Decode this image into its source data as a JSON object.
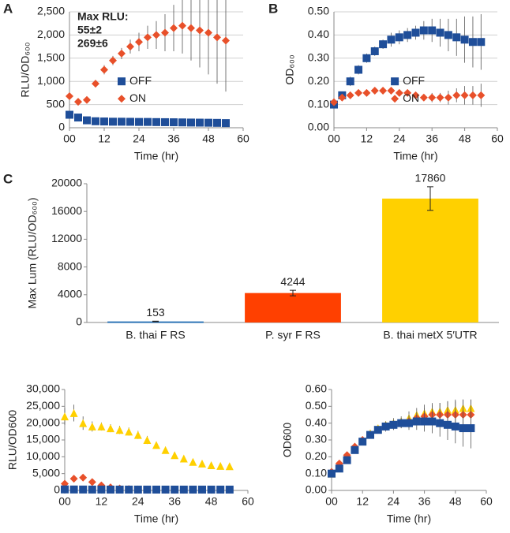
{
  "chart_data": [
    {
      "type": "line",
      "panel": "A",
      "xlabel": "Time (hr)",
      "ylabel": "RLU/OD₆₀₀",
      "x": [
        0,
        3,
        6,
        9,
        12,
        15,
        18,
        21,
        24,
        27,
        30,
        33,
        36,
        39,
        42,
        45,
        48,
        51,
        54
      ],
      "xlim": [
        0,
        60
      ],
      "xticks": [
        {
          "value": 0,
          "label": "00"
        },
        12,
        24,
        36,
        48,
        60
      ],
      "ylim": [
        0,
        2500
      ],
      "yticks": [
        0,
        500,
        {
          "value": 1000,
          "label": "1,000"
        },
        {
          "value": 1500,
          "label": "1,500"
        },
        {
          "value": 2000,
          "label": "2,000"
        },
        {
          "value": 2500,
          "label": "2,500"
        }
      ],
      "grid": true,
      "legend": "center",
      "annotations": [
        {
          "text": "Max RLU:",
          "color": "#000000"
        },
        {
          "text": "55±2",
          "color": "#1f4e99"
        },
        {
          "text": "269±6",
          "color": "#e8502a"
        }
      ],
      "series": [
        {
          "name": "OFF",
          "color": "#1f4e99",
          "marker": "square",
          "values": [
            280,
            220,
            160,
            140,
            135,
            130,
            130,
            128,
            125,
            125,
            122,
            120,
            118,
            115,
            112,
            110,
            108,
            105,
            100
          ],
          "errors": [
            40,
            30,
            25,
            20,
            20,
            20,
            20,
            20,
            20,
            20,
            20,
            20,
            20,
            20,
            20,
            25,
            25,
            25,
            25
          ]
        },
        {
          "name": "ON",
          "color": "#e8502a",
          "marker": "diamond",
          "values": [
            680,
            560,
            600,
            950,
            1250,
            1450,
            1600,
            1750,
            1850,
            1950,
            2000,
            2050,
            2150,
            2200,
            2150,
            2100,
            2050,
            1950,
            1880
          ],
          "errors": [
            50,
            50,
            60,
            80,
            100,
            100,
            120,
            150,
            200,
            250,
            300,
            400,
            500,
            600,
            700,
            800,
            900,
            1000,
            1100
          ]
        }
      ]
    },
    {
      "type": "line",
      "panel": "B",
      "xlabel": "Time (hr)",
      "ylabel": "OD₆₀₀",
      "x": [
        0,
        3,
        6,
        9,
        12,
        15,
        18,
        21,
        24,
        27,
        30,
        33,
        36,
        39,
        42,
        45,
        48,
        51,
        54
      ],
      "xlim": [
        0,
        60
      ],
      "xticks": [
        {
          "value": 0,
          "label": "00"
        },
        12,
        24,
        36,
        48,
        60
      ],
      "ylim": [
        0,
        0.5
      ],
      "yticks": [
        {
          "value": 0,
          "label": "0.00"
        },
        {
          "value": 0.1,
          "label": "0.10"
        },
        {
          "value": 0.2,
          "label": "0.20"
        },
        {
          "value": 0.3,
          "label": "0.30"
        },
        {
          "value": 0.4,
          "label": "0.40"
        },
        {
          "value": 0.5,
          "label": "0.50"
        }
      ],
      "grid": true,
      "legend": "center",
      "series": [
        {
          "name": "OFF",
          "color": "#1f4e99",
          "marker": "square",
          "values": [
            0.1,
            0.14,
            0.2,
            0.25,
            0.3,
            0.33,
            0.36,
            0.38,
            0.39,
            0.4,
            0.41,
            0.42,
            0.42,
            0.41,
            0.4,
            0.39,
            0.38,
            0.37,
            0.37
          ],
          "errors": [
            0.01,
            0.01,
            0.02,
            0.02,
            0.02,
            0.02,
            0.02,
            0.03,
            0.03,
            0.03,
            0.03,
            0.04,
            0.05,
            0.06,
            0.07,
            0.08,
            0.1,
            0.11,
            0.12
          ]
        },
        {
          "name": "ON",
          "color": "#e8502a",
          "marker": "diamond",
          "values": [
            0.11,
            0.13,
            0.14,
            0.15,
            0.15,
            0.16,
            0.16,
            0.16,
            0.15,
            0.15,
            0.14,
            0.13,
            0.13,
            0.13,
            0.13,
            0.14,
            0.14,
            0.14,
            0.14
          ],
          "errors": [
            0.01,
            0.01,
            0.01,
            0.01,
            0.01,
            0.01,
            0.01,
            0.01,
            0.01,
            0.01,
            0.01,
            0.01,
            0.02,
            0.02,
            0.03,
            0.03,
            0.04,
            0.04,
            0.05
          ]
        }
      ]
    },
    {
      "type": "bar",
      "panel": "C",
      "ylabel": "Max Lum (RLU/OD₆₀₀)",
      "categories": [
        "B. thai F RS",
        "P. syr F RS",
        "B. thai metX 5′UTR"
      ],
      "values": [
        153,
        4244,
        17860
      ],
      "errors": [
        40,
        400,
        1700
      ],
      "colors": [
        "#2e75b6",
        "#ff4000",
        "#ffd000"
      ],
      "ylim": [
        0,
        20000
      ],
      "yticks": [
        0,
        4000,
        8000,
        12000,
        16000,
        20000
      ],
      "grid": false
    },
    {
      "type": "line",
      "xlabel": "Time (hr)",
      "ylabel": "RLU/OD600",
      "x": [
        0,
        3,
        6,
        9,
        12,
        15,
        18,
        21,
        24,
        27,
        30,
        33,
        36,
        39,
        42,
        45,
        48,
        51,
        54
      ],
      "xlim": [
        0,
        60
      ],
      "xticks": [
        {
          "value": 0,
          "label": "00"
        },
        12,
        24,
        36,
        48,
        60
      ],
      "ylim": [
        0,
        30000
      ],
      "yticks": [
        0,
        {
          "value": 5000,
          "label": "5,000"
        },
        {
          "value": 10000,
          "label": "10,000"
        },
        {
          "value": 15000,
          "label": "15,000"
        },
        {
          "value": 20000,
          "label": "20,000"
        },
        {
          "value": 25000,
          "label": "25,000"
        },
        {
          "value": 30000,
          "label": "30,000"
        }
      ],
      "grid": false,
      "series": [
        {
          "color": "#ffd000",
          "marker": "triangle",
          "values": [
            22000,
            23000,
            20000,
            19000,
            19000,
            18500,
            18000,
            17500,
            16500,
            15000,
            13500,
            12000,
            10500,
            9500,
            8500,
            8000,
            7500,
            7300,
            7200
          ],
          "errors": [
            2500,
            2500,
            2000,
            1500,
            1200,
            1200,
            1200,
            1200,
            1200,
            1200,
            1000,
            1000,
            900,
            800,
            700,
            600,
            600,
            500,
            500
          ]
        },
        {
          "color": "#e8502a",
          "marker": "diamond",
          "values": [
            2000,
            3500,
            3800,
            2500,
            1500,
            900,
            600,
            400,
            300,
            250,
            220,
            200,
            200,
            200,
            200,
            200,
            200,
            200,
            200
          ],
          "errors": [
            600,
            900,
            700,
            400,
            300,
            200,
            150,
            100,
            100,
            100,
            100,
            100,
            100,
            100,
            100,
            100,
            100,
            100,
            100
          ]
        },
        {
          "color": "#1f4e99",
          "marker": "square",
          "values": [
            300,
            280,
            270,
            260,
            260,
            250,
            250,
            250,
            250,
            250,
            250,
            250,
            250,
            250,
            250,
            250,
            250,
            250,
            250
          ],
          "errors": [
            50,
            50,
            50,
            50,
            50,
            50,
            50,
            50,
            50,
            50,
            50,
            50,
            50,
            50,
            50,
            50,
            50,
            50,
            50
          ]
        }
      ]
    },
    {
      "type": "line",
      "xlabel": "Time (hr)",
      "ylabel": "OD600",
      "x": [
        0,
        3,
        6,
        9,
        12,
        15,
        18,
        21,
        24,
        27,
        30,
        33,
        36,
        39,
        42,
        45,
        48,
        51,
        54
      ],
      "xlim": [
        0,
        60
      ],
      "xticks": [
        {
          "value": 0,
          "label": "00"
        },
        12,
        24,
        36,
        48,
        60
      ],
      "ylim": [
        0,
        0.6
      ],
      "yticks": [
        {
          "value": 0,
          "label": "0.00"
        },
        {
          "value": 0.1,
          "label": "0.10"
        },
        {
          "value": 0.2,
          "label": "0.20"
        },
        {
          "value": 0.3,
          "label": "0.30"
        },
        {
          "value": 0.4,
          "label": "0.40"
        },
        {
          "value": 0.5,
          "label": "0.50"
        },
        {
          "value": 0.6,
          "label": "0.60"
        }
      ],
      "grid": false,
      "series": [
        {
          "color": "#ffd000",
          "marker": "triangle",
          "values": [
            0.1,
            0.15,
            0.2,
            0.26,
            0.3,
            0.34,
            0.37,
            0.39,
            0.4,
            0.41,
            0.43,
            0.45,
            0.46,
            0.47,
            0.47,
            0.48,
            0.48,
            0.49,
            0.49
          ],
          "errors": [
            0.01,
            0.01,
            0.02,
            0.02,
            0.02,
            0.02,
            0.02,
            0.02,
            0.03,
            0.03,
            0.04,
            0.04,
            0.05,
            0.05,
            0.05,
            0.05,
            0.05,
            0.05,
            0.05
          ]
        },
        {
          "color": "#e8502a",
          "marker": "diamond",
          "values": [
            0.11,
            0.16,
            0.21,
            0.26,
            0.3,
            0.33,
            0.36,
            0.38,
            0.39,
            0.4,
            0.41,
            0.43,
            0.44,
            0.45,
            0.45,
            0.45,
            0.45,
            0.45,
            0.45
          ],
          "errors": [
            0.01,
            0.01,
            0.02,
            0.02,
            0.02,
            0.02,
            0.02,
            0.02,
            0.03,
            0.03,
            0.04,
            0.04,
            0.05,
            0.06,
            0.07,
            0.08,
            0.09,
            0.09,
            0.09
          ]
        },
        {
          "color": "#1f4e99",
          "marker": "square",
          "values": [
            0.1,
            0.13,
            0.18,
            0.24,
            0.29,
            0.33,
            0.36,
            0.38,
            0.39,
            0.4,
            0.4,
            0.41,
            0.41,
            0.41,
            0.4,
            0.39,
            0.38,
            0.37,
            0.37
          ],
          "errors": [
            0.01,
            0.01,
            0.02,
            0.02,
            0.02,
            0.02,
            0.02,
            0.03,
            0.03,
            0.03,
            0.04,
            0.05,
            0.06,
            0.07,
            0.08,
            0.09,
            0.1,
            0.11,
            0.12
          ]
        }
      ]
    }
  ]
}
